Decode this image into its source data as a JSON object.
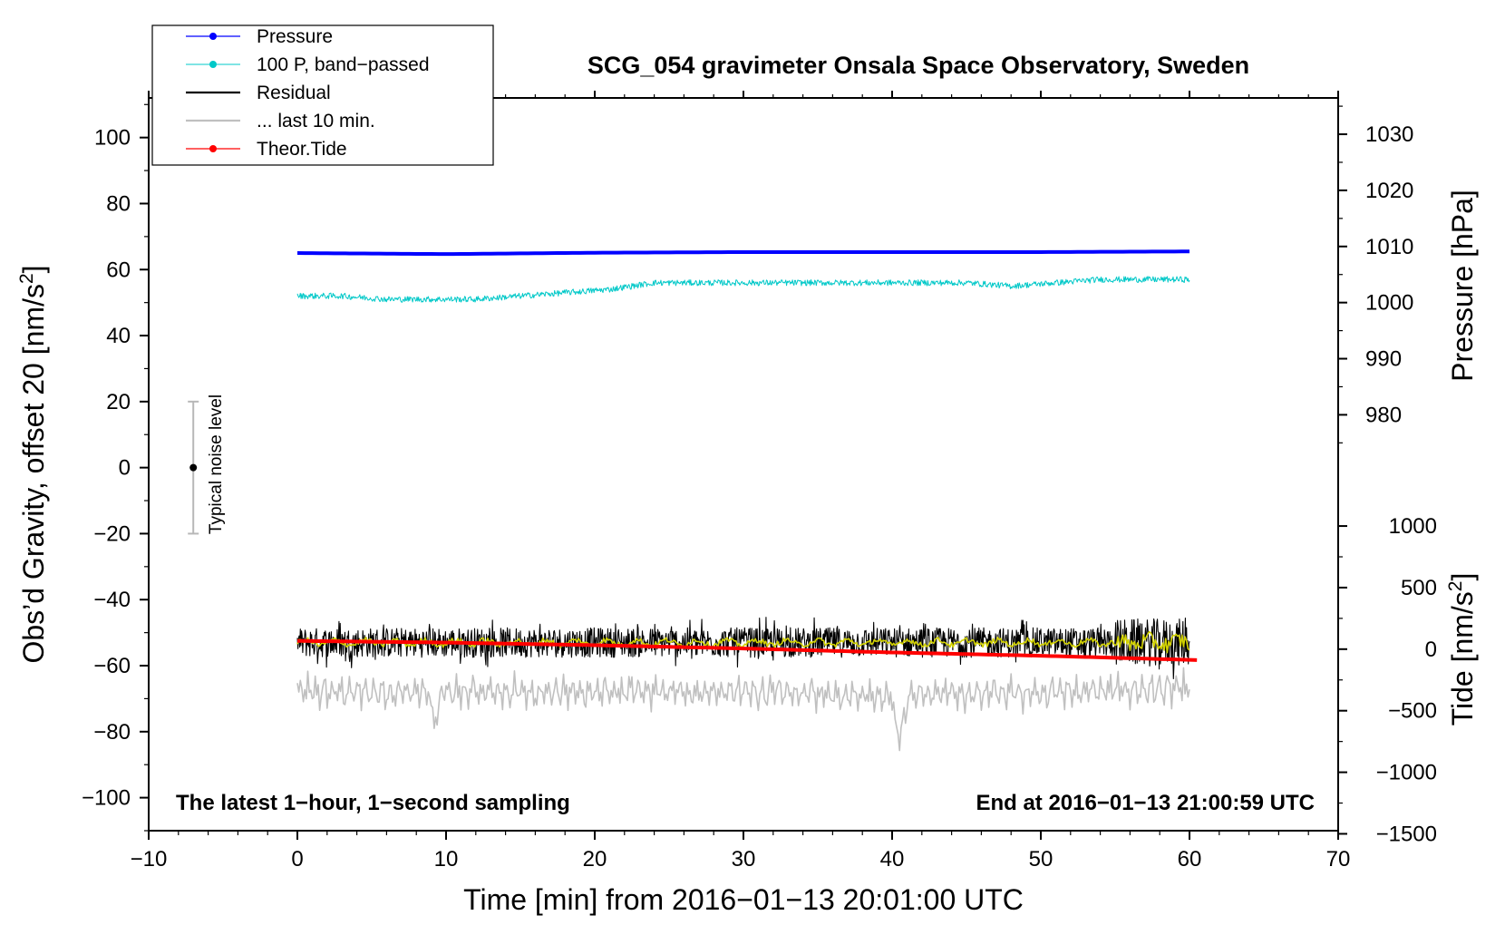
{
  "chart_data": {
    "type": "line",
    "title": "SCG_054 gravimeter Onsala Space Observatory, Sweden",
    "xlabel": "Time [min] from 2016−01−13 20:01:00 UTC",
    "ylabel_left": "Obs'd Gravity, offset 20 [nm/s²]",
    "ylabel_left_text": "Obs’d Gravity, offset 20 [nm/s",
    "ylabel_pressure_text": "Pressure [hPa]",
    "ylabel_tide_text": "Tide [nm/s",
    "superscript": "2",
    "note_left": "The latest 1−hour, 1−second sampling",
    "note_right": "End at 2016−01−13 21:00:59 UTC",
    "noise_label": "Typical noise level",
    "xlim": [
      -10,
      70
    ],
    "ylim": [
      -110,
      112
    ],
    "x_ticks": [
      -10,
      0,
      10,
      20,
      30,
      40,
      50,
      60,
      70
    ],
    "x_tick_labels": [
      "−10",
      "0",
      "10",
      "20",
      "30",
      "40",
      "50",
      "60",
      "70"
    ],
    "y_ticks": [
      100,
      80,
      60,
      40,
      20,
      0,
      -20,
      -40,
      -60,
      -80,
      -100
    ],
    "y_tick_labels": [
      "100",
      "80",
      "60",
      "40",
      "20",
      "0",
      "−20",
      "−40",
      "−60",
      "−80",
      "−100"
    ],
    "pressure_axis": {
      "ticks": [
        1030,
        1020,
        1010,
        1000,
        990,
        980
      ],
      "tick_labels": [
        "1030",
        "1020",
        "1010",
        "1000",
        "990",
        "980"
      ],
      "gravity_at_1000": 50,
      "gravity_per_hpa": 1.7
    },
    "tide_axis": {
      "ticks": [
        1000,
        500,
        0,
        -500,
        -1000,
        -1500
      ],
      "tick_labels": [
        "1000",
        "500",
        "0",
        "−500",
        "−1000",
        "−1500"
      ],
      "gravity_at_0": -55,
      "gravity_per_unit": 0.0373
    },
    "noise_level": {
      "x": -7,
      "center": 0,
      "half_range": 20
    },
    "series": [
      {
        "name": "Pressure",
        "color": "#0000ff",
        "kind": "smooth",
        "x": [
          0,
          10,
          20,
          30,
          40,
          50,
          60
        ],
        "values": [
          65,
          64.7,
          65.1,
          65.3,
          65.3,
          65.3,
          65.5
        ]
      },
      {
        "name": "100 P, band−passed",
        "color": "#00c8c8",
        "kind": "noisy",
        "x": [
          0,
          3,
          6,
          9,
          12,
          15,
          18,
          21,
          24,
          27,
          30,
          33,
          36,
          39,
          42,
          45,
          48,
          51,
          54,
          57,
          60
        ],
        "values": [
          52,
          52,
          51,
          51,
          51,
          52,
          53,
          54,
          56,
          56,
          56,
          56,
          56,
          56,
          56,
          56,
          55,
          56,
          57,
          57,
          57
        ],
        "amplitude": 0.9
      },
      {
        "name": "Residual",
        "color": "#000000",
        "kind": "noisy",
        "x": [
          0,
          10,
          20,
          30,
          40,
          50,
          55,
          60
        ],
        "values": [
          -53,
          -53,
          -53,
          -53,
          -53,
          -53,
          -53,
          -53
        ],
        "amplitude": 4.5
      },
      {
        "name": "... last 10 min.",
        "color": "#c0c0c0",
        "kind": "noisy",
        "x": [
          0,
          10,
          20,
          30,
          40,
          50,
          60
        ],
        "values": [
          -68,
          -68,
          -68,
          -68,
          -69,
          -68,
          -67
        ],
        "amplitude": 4.5
      },
      {
        "name": "Theor.Tide",
        "color": "#ff0000",
        "kind": "smooth",
        "x": [
          0,
          10,
          20,
          30,
          40,
          50,
          60.5
        ],
        "values": [
          -52.5,
          -53,
          -53.8,
          -54.8,
          -56,
          -57,
          -58.3
        ]
      }
    ],
    "smoothed_residual_color": "#d2d200"
  }
}
